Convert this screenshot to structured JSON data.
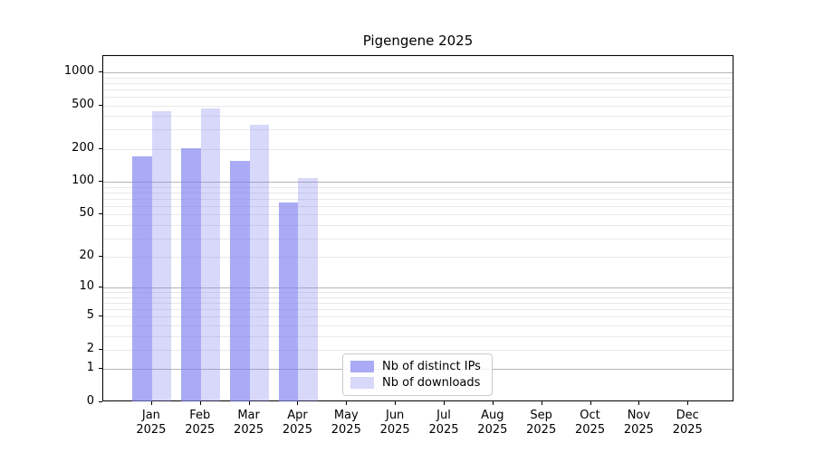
{
  "title": "Pigengene 2025",
  "colors": {
    "bar_ips": "rgba(125,125,240,0.65)",
    "bar_ips_displayed": "#aaaaf5",
    "bar_downloads": "rgba(125,125,240,0.30)",
    "bar_downloads_displayed": "#d8d8fa",
    "grid_major": "#b5b5b5",
    "grid_minor": "#e9e9e9",
    "axis": "#000000",
    "legend_border": "#cccccc"
  },
  "chart_data": {
    "type": "bar",
    "title": "Pigengene 2025",
    "categories": [
      "Jan 2025",
      "Feb 2025",
      "Mar 2025",
      "Apr 2025",
      "May 2025",
      "Jun 2025",
      "Jul 2025",
      "Aug 2025",
      "Sep 2025",
      "Oct 2025",
      "Nov 2025",
      "Dec 2025"
    ],
    "series": [
      {
        "name": "Nb of distinct IPs",
        "values": [
          170,
          205,
          155,
          64,
          null,
          null,
          null,
          null,
          null,
          null,
          null,
          null
        ]
      },
      {
        "name": "Nb of downloads",
        "values": [
          440,
          465,
          335,
          108,
          null,
          null,
          null,
          null,
          null,
          null,
          null,
          null
        ]
      }
    ],
    "xlabel": "",
    "ylabel": "",
    "yscale": "log1p",
    "yticks": [
      0,
      1,
      2,
      5,
      10,
      20,
      50,
      100,
      200,
      500,
      1000
    ],
    "ylim": [
      0,
      1400
    ],
    "grid": "horizontal, minor log divisions light + decade lines darker",
    "legend_position": "inside bottom-center-left"
  }
}
